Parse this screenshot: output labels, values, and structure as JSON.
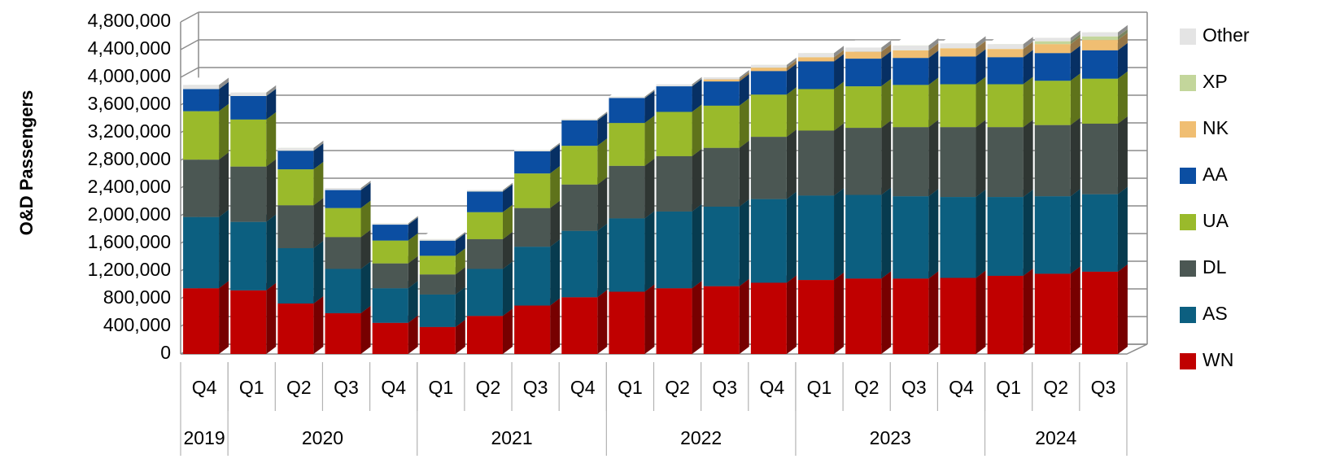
{
  "chart_data": {
    "type": "bar3d-stacked",
    "y_label": "O&D Passengers",
    "groups": [
      {
        "label": "2019",
        "categories": [
          "Q4"
        ]
      },
      {
        "label": "2020",
        "categories": [
          "Q1",
          "Q2",
          "Q3",
          "Q4"
        ]
      },
      {
        "label": "2021",
        "categories": [
          "Q1",
          "Q2",
          "Q3",
          "Q4"
        ]
      },
      {
        "label": "2022",
        "categories": [
          "Q1",
          "Q2",
          "Q3",
          "Q4"
        ]
      },
      {
        "label": "2023",
        "categories": [
          "Q1",
          "Q2",
          "Q3",
          "Q4"
        ]
      },
      {
        "label": "2024",
        "categories": [
          "Q1",
          "Q2",
          "Q3"
        ]
      }
    ],
    "ylim": [
      0,
      4800000
    ],
    "yticks": [
      0,
      {
        "value": 400000,
        "label": "400,000"
      },
      {
        "value": 800000,
        "label": "800,000"
      },
      {
        "value": 1200000,
        "label": "1,200,000"
      },
      {
        "value": 1600000,
        "label": "1,600,000"
      },
      {
        "value": 2000000,
        "label": "2,000,000"
      },
      {
        "value": 2400000,
        "label": "2,400,000"
      },
      {
        "value": 2800000,
        "label": "2,800,000"
      },
      {
        "value": 3200000,
        "label": "3,200,000"
      },
      {
        "value": 3600000,
        "label": "3,600,000"
      },
      {
        "value": 4000000,
        "label": "4,000,000"
      },
      {
        "value": 4400000,
        "label": "4,400,000"
      },
      {
        "value": 4800000,
        "label": "4,800,000"
      }
    ],
    "grid": true,
    "legend": "right",
    "series": [
      {
        "name": "WN",
        "color": "#c00000",
        "values": [
          950000,
          920000,
          730000,
          590000,
          450000,
          390000,
          550000,
          700000,
          820000,
          900000,
          950000,
          980000,
          1030000,
          1070000,
          1090000,
          1090000,
          1100000,
          1130000,
          1160000,
          1190000
        ]
      },
      {
        "name": "AS",
        "color": "#0c5f80",
        "values": [
          1030000,
          990000,
          800000,
          640000,
          500000,
          470000,
          680000,
          850000,
          960000,
          1060000,
          1110000,
          1150000,
          1210000,
          1220000,
          1210000,
          1190000,
          1170000,
          1140000,
          1120000,
          1120000
        ]
      },
      {
        "name": "DL",
        "color": "#4b5753",
        "values": [
          830000,
          800000,
          620000,
          460000,
          360000,
          290000,
          430000,
          560000,
          670000,
          760000,
          800000,
          850000,
          900000,
          940000,
          970000,
          1000000,
          1010000,
          1010000,
          1030000,
          1020000
        ]
      },
      {
        "name": "UA",
        "color": "#9aba2b",
        "values": [
          700000,
          680000,
          520000,
          420000,
          330000,
          270000,
          390000,
          500000,
          560000,
          620000,
          640000,
          610000,
          610000,
          600000,
          600000,
          610000,
          620000,
          620000,
          640000,
          650000
        ]
      },
      {
        "name": "AA",
        "color": "#0b4ea2",
        "values": [
          320000,
          340000,
          270000,
          260000,
          230000,
          220000,
          300000,
          320000,
          370000,
          360000,
          370000,
          350000,
          340000,
          400000,
          400000,
          390000,
          400000,
          390000,
          400000,
          410000
        ]
      },
      {
        "name": "NK",
        "color": "#f0be72",
        "values": [
          0,
          0,
          0,
          0,
          0,
          0,
          0,
          0,
          0,
          0,
          0,
          30000,
          50000,
          60000,
          100000,
          110000,
          120000,
          120000,
          130000,
          150000
        ]
      },
      {
        "name": "XP",
        "color": "#c3d69b",
        "values": [
          0,
          0,
          0,
          0,
          0,
          0,
          0,
          0,
          0,
          0,
          0,
          0,
          0,
          0,
          0,
          0,
          0,
          0,
          40000,
          50000
        ]
      },
      {
        "name": "Other",
        "color": "#e4e4e4",
        "values": [
          60000,
          50000,
          40000,
          30000,
          20000,
          20000,
          20000,
          20000,
          20000,
          20000,
          30000,
          30000,
          40000,
          60000,
          60000,
          70000,
          70000,
          70000,
          50000,
          60000
        ]
      }
    ]
  }
}
